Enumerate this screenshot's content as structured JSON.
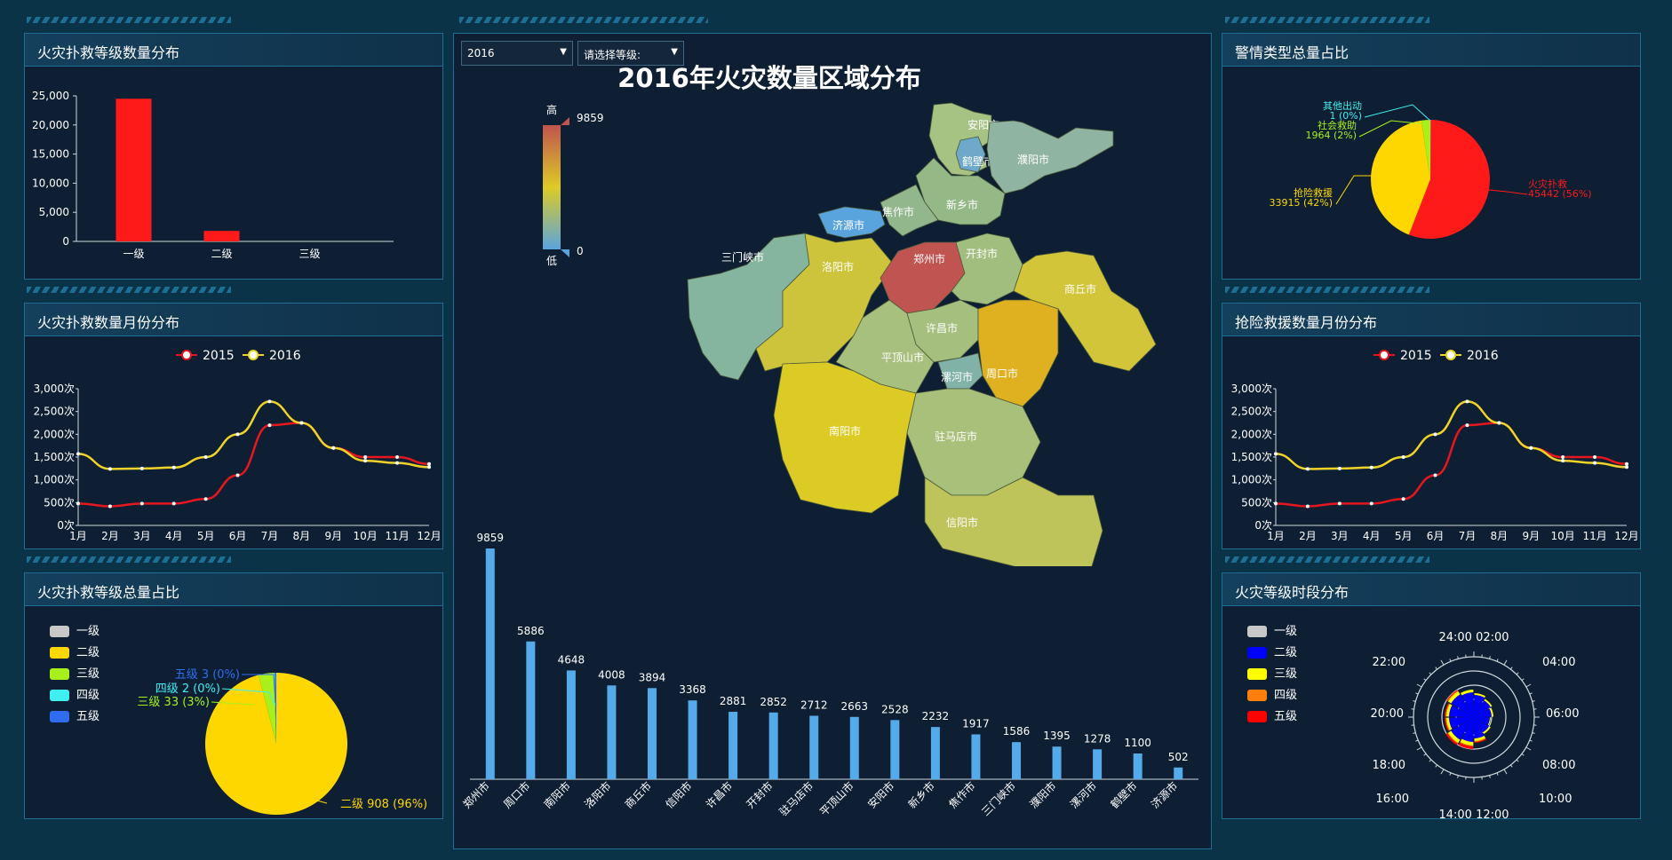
{
  "panels": {
    "p1": {
      "title": "火灾扑救等级数量分布"
    },
    "p2": {
      "title": "火灾扑救数量月份分布"
    },
    "p3": {
      "title": "火灾扑救等级总量占比"
    },
    "p4": {
      "title": "警情类型总量占比"
    },
    "p5": {
      "title": "抢险救援数量月份分布"
    },
    "p6": {
      "title": "火灾等级时段分布"
    }
  },
  "center": {
    "title": "2016年火灾数量区域分布",
    "year_select": "2016",
    "level_select": "请选择等级:",
    "visualmap": {
      "high_label": "高",
      "low_label": "低",
      "max": "9859",
      "min": "0"
    }
  },
  "chart_data": [
    {
      "id": "level_bar",
      "type": "bar",
      "categories": [
        "一级",
        "二级",
        "三级"
      ],
      "values": [
        24500,
        1800,
        0
      ],
      "ylim": [
        0,
        25000
      ],
      "yticks": [
        "0",
        "5,000",
        "10,000",
        "15,000",
        "20,000",
        "25,000"
      ],
      "color": "#ff1a1a"
    },
    {
      "id": "fire_monthly",
      "type": "line",
      "categories": [
        "1月",
        "2月",
        "3月",
        "4月",
        "5月",
        "6月",
        "7月",
        "8月",
        "9月",
        "10月",
        "11月",
        "12月"
      ],
      "yticks": [
        "0次",
        "500次",
        "1,000次",
        "1,500次",
        "2,000次",
        "2,500次",
        "3,000次"
      ],
      "ylim": [
        0,
        3000
      ],
      "series": [
        {
          "name": "2015",
          "color": "#e8161e",
          "values": [
            480,
            420,
            480,
            480,
            580,
            1100,
            2200,
            2250,
            1700,
            1500,
            1500,
            1350
          ]
        },
        {
          "name": "2016",
          "color": "#f0d328",
          "values": [
            1570,
            1240,
            1250,
            1270,
            1500,
            2000,
            2720,
            2250,
            1700,
            1420,
            1370,
            1280
          ]
        }
      ]
    },
    {
      "id": "fire_level_pie",
      "type": "pie",
      "legend": [
        "一级",
        "二级",
        "三级",
        "四级",
        "五级"
      ],
      "colors": [
        "#c8c8c8",
        "#ffd700",
        "#a8f01c",
        "#3ef0f0",
        "#2f6cf0"
      ],
      "slices": [
        {
          "name": "一级",
          "value": 0
        },
        {
          "name": "二级",
          "value": 908,
          "label": "二级 908 (96%)"
        },
        {
          "name": "三级",
          "value": 33,
          "label": "三级 33 (3%)"
        },
        {
          "name": "四级",
          "value": 2,
          "label": "四级 2 (0%)"
        },
        {
          "name": "五级",
          "value": 3,
          "label": "五级 3 (0%)"
        }
      ]
    },
    {
      "id": "alarm_type_pie",
      "type": "pie",
      "slices": [
        {
          "name": "火灾扑救",
          "value": 45442,
          "color": "#ff1a1a",
          "label1": "火灾扑救",
          "label2": "45442 (56%)"
        },
        {
          "name": "抢险救援",
          "value": 33915,
          "color": "#ffd700",
          "label1": "抢险救援",
          "label2": "33915 (42%)"
        },
        {
          "name": "社会救助",
          "value": 1964,
          "color": "#a8f01c",
          "label1": "社会救助",
          "label2": "1964 (2%)"
        },
        {
          "name": "其他出动",
          "value": 1,
          "color": "#3ef0f0",
          "label1": "其他出动",
          "label2": "1 (0%)"
        }
      ]
    },
    {
      "id": "rescue_monthly",
      "type": "line",
      "categories": [
        "1月",
        "2月",
        "3月",
        "4月",
        "5月",
        "6月",
        "7月",
        "8月",
        "9月",
        "10月",
        "11月",
        "12月"
      ],
      "yticks": [
        "0次",
        "500次",
        "1,000次",
        "1,500次",
        "2,000次",
        "2,500次",
        "3,000次"
      ],
      "ylim": [
        0,
        3000
      ],
      "series": [
        {
          "name": "2015",
          "color": "#e8161e",
          "values": [
            480,
            420,
            480,
            480,
            580,
            1100,
            2200,
            2250,
            1700,
            1500,
            1500,
            1350
          ]
        },
        {
          "name": "2016",
          "color": "#f0d328",
          "values": [
            1570,
            1240,
            1250,
            1270,
            1500,
            2000,
            2720,
            2250,
            1700,
            1420,
            1370,
            1280
          ]
        }
      ]
    },
    {
      "id": "city_bar",
      "type": "bar",
      "categories": [
        "郑州市",
        "周口市",
        "南阳市",
        "洛阳市",
        "商丘市",
        "信阳市",
        "许昌市",
        "开封市",
        "驻马店市",
        "平顶山市",
        "安阳市",
        "新乡市",
        "焦作市",
        "三门峡市",
        "濮阳市",
        "漯河市",
        "鹤壁市",
        "济源市"
      ],
      "values": [
        9859,
        5886,
        4648,
        4008,
        3894,
        3368,
        2881,
        2852,
        2712,
        2663,
        2528,
        2232,
        1917,
        1586,
        1395,
        1278,
        1100,
        502
      ],
      "color": "#55aaea"
    },
    {
      "id": "level_time_polar",
      "type": "polar-bar",
      "legend": [
        "一级",
        "二级",
        "三级",
        "四级",
        "五级"
      ],
      "colors": [
        "#c8c8c8",
        "#0000ff",
        "#ffff00",
        "#ff7f0e",
        "#ff0000"
      ],
      "hours": [
        "24:00",
        "02:00",
        "04:00",
        "06:00",
        "08:00",
        "10:00",
        "12:00",
        "14:00",
        "16:00",
        "18:00",
        "20:00",
        "22:00"
      ],
      "stacks": [
        {
          "name": "二级",
          "values": [
            25,
            22,
            20,
            18,
            20,
            24,
            28,
            30,
            28,
            28,
            30,
            28
          ]
        },
        {
          "name": "三级",
          "values": [
            2,
            2,
            2,
            1,
            2,
            3,
            4,
            4,
            3,
            3,
            4,
            3
          ]
        },
        {
          "name": "四级",
          "values": [
            0,
            0,
            0,
            0,
            0,
            1,
            1,
            1,
            1,
            1,
            1,
            0
          ]
        },
        {
          "name": "五级",
          "values": [
            0,
            0,
            0,
            0,
            0,
            1,
            3,
            2,
            1,
            1,
            1,
            0
          ]
        }
      ]
    }
  ],
  "map": {
    "regions": [
      {
        "name": "安阳市",
        "color": "#a6c384"
      },
      {
        "name": "鹤壁市",
        "color": "#6ea9c9"
      },
      {
        "name": "濮阳市",
        "color": "#8fb4a1"
      },
      {
        "name": "新乡市",
        "color": "#95b887"
      },
      {
        "name": "焦作市",
        "color": "#92b78c"
      },
      {
        "name": "济源市",
        "color": "#5aa4de"
      },
      {
        "name": "三门峡市",
        "color": "#86b59f"
      },
      {
        "name": "洛阳市",
        "color": "#cdc43c"
      },
      {
        "name": "郑州市",
        "color": "#c05450"
      },
      {
        "name": "开封市",
        "color": "#a2be7e"
      },
      {
        "name": "商丘市",
        "color": "#d3c539"
      },
      {
        "name": "许昌市",
        "color": "#a5bf7e"
      },
      {
        "name": "平顶山市",
        "color": "#a8c07d"
      },
      {
        "name": "漯河市",
        "color": "#80b2a8"
      },
      {
        "name": "周口市",
        "color": "#dfb020"
      },
      {
        "name": "南阳市",
        "color": "#dccb25"
      },
      {
        "name": "驻马店市",
        "color": "#a8c07a"
      },
      {
        "name": "信阳市",
        "color": "#bec45a"
      }
    ]
  }
}
